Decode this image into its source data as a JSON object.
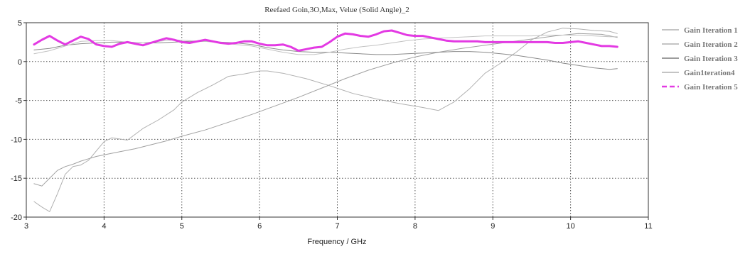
{
  "chart_data": {
    "type": "line",
    "title": "Reefaed Goin,3O,Max, Velue (Solid Angle)_2",
    "xlabel": "Frequency / GHz",
    "ylabel": "",
    "xlim": [
      3,
      11
    ],
    "ylim": [
      -20,
      5
    ],
    "xticks": [
      3,
      4,
      5,
      6,
      7,
      8,
      9,
      10,
      11
    ],
    "yticks": [
      5,
      0,
      -5,
      -10,
      -15,
      -20
    ],
    "grid": true,
    "legend_position": "right",
    "series": [
      {
        "name": "Gain Iteration 1",
        "color": "#a0a0a0",
        "width": 1,
        "dash": false,
        "x": [
          3.1,
          3.2,
          3.3,
          3.4,
          3.5,
          3.6,
          3.7,
          3.8,
          3.9,
          4.0,
          4.2,
          4.4,
          4.6,
          4.8,
          5.0,
          5.3,
          5.6,
          5.9,
          6.2,
          6.5,
          6.8,
          7.1,
          7.4,
          7.7,
          8.0,
          8.3,
          8.6,
          8.9,
          9.2,
          9.5,
          9.8,
          10.1,
          10.4,
          10.6
        ],
        "y": [
          -15.7,
          -16.0,
          -15.0,
          -14.0,
          -13.5,
          -13.2,
          -12.8,
          -12.5,
          -12.2,
          -12.0,
          -11.6,
          -11.2,
          -10.7,
          -10.2,
          -9.6,
          -8.8,
          -7.8,
          -6.8,
          -5.7,
          -4.6,
          -3.4,
          -2.2,
          -1.1,
          -0.2,
          0.6,
          1.2,
          1.7,
          2.1,
          2.5,
          2.9,
          3.3,
          3.6,
          3.5,
          3.1
        ]
      },
      {
        "name": "Gain Iteration 2",
        "color": "#b0b0b0",
        "width": 1,
        "dash": false,
        "x": [
          3.1,
          3.2,
          3.3,
          3.4,
          3.5,
          3.6,
          3.7,
          3.8,
          3.9,
          4.0,
          4.1,
          4.3,
          4.5,
          4.7,
          4.9,
          5.0,
          5.2,
          5.4,
          5.6,
          5.8,
          6.0,
          6.1,
          6.3,
          6.6,
          6.9,
          7.2,
          7.5,
          7.8,
          8.1,
          8.3,
          8.5,
          8.7,
          8.9,
          9.1,
          9.3,
          9.5,
          9.7,
          9.9,
          10.1,
          10.3,
          10.5,
          10.6
        ],
        "y": [
          -18.0,
          -18.7,
          -19.3,
          -17.0,
          -14.5,
          -13.5,
          -13.3,
          -12.7,
          -11.5,
          -10.3,
          -9.8,
          -10.1,
          -8.6,
          -7.5,
          -6.2,
          -5.2,
          -4.0,
          -3.0,
          -1.9,
          -1.6,
          -1.2,
          -1.2,
          -1.5,
          -2.2,
          -3.1,
          -4.1,
          -4.8,
          -5.4,
          -5.9,
          -6.3,
          -5.2,
          -3.5,
          -1.5,
          -0.2,
          1.2,
          2.8,
          3.8,
          4.3,
          4.2,
          4.0,
          3.9,
          3.6
        ]
      },
      {
        "name": "Gain Iteration 3",
        "color": "#8a8a8a",
        "width": 1,
        "dash": false,
        "x": [
          3.1,
          3.3,
          3.5,
          3.7,
          3.9,
          4.1,
          4.3,
          4.5,
          4.7,
          4.9,
          5.1,
          5.3,
          5.5,
          5.7,
          5.9,
          6.1,
          6.3,
          6.5,
          6.7,
          6.9,
          7.1,
          7.3,
          7.5,
          7.7,
          7.9,
          8.1,
          8.3,
          8.5,
          8.7,
          8.9,
          9.1,
          9.3,
          9.5,
          9.7,
          9.9,
          10.1,
          10.3,
          10.5,
          10.6
        ],
        "y": [
          1.5,
          1.7,
          2.1,
          2.3,
          2.4,
          2.5,
          2.5,
          2.4,
          2.4,
          2.5,
          2.6,
          2.6,
          2.5,
          2.4,
          2.2,
          1.8,
          1.5,
          1.3,
          1.2,
          1.2,
          1.1,
          1.0,
          0.9,
          0.9,
          1.0,
          1.1,
          1.2,
          1.3,
          1.3,
          1.2,
          1.0,
          0.8,
          0.5,
          0.2,
          -0.2,
          -0.5,
          -0.8,
          -1.0,
          -0.9
        ]
      },
      {
        "name": "Gain Iteration 4",
        "color": "#c2c2c2",
        "width": 1,
        "dash": false,
        "x": [
          3.1,
          3.3,
          3.5,
          3.7,
          3.9,
          4.1,
          4.3,
          4.5,
          4.7,
          4.9,
          5.1,
          5.3,
          5.5,
          5.7,
          5.9,
          6.1,
          6.3,
          6.5,
          6.7,
          6.9,
          7.1,
          7.3,
          7.5,
          7.7,
          7.9,
          8.1,
          8.3,
          8.5,
          8.7,
          8.9,
          9.1,
          9.3,
          9.5,
          9.7,
          9.9,
          10.1,
          10.3,
          10.5,
          10.6
        ],
        "y": [
          1.0,
          1.4,
          2.0,
          2.6,
          2.7,
          2.7,
          2.5,
          2.4,
          2.6,
          2.8,
          2.7,
          2.6,
          2.4,
          2.2,
          2.0,
          1.6,
          1.2,
          0.9,
          0.9,
          1.2,
          1.6,
          1.9,
          2.1,
          2.4,
          2.7,
          2.9,
          3.0,
          3.1,
          3.2,
          3.3,
          3.3,
          3.3,
          3.3,
          3.4,
          3.4,
          3.4,
          3.3,
          3.2,
          3.2
        ]
      },
      {
        "name": "Gain Iteration 5",
        "color": "#e33ae3",
        "width": 3,
        "dash": false,
        "x": [
          3.1,
          3.2,
          3.3,
          3.4,
          3.5,
          3.6,
          3.7,
          3.8,
          3.9,
          4.0,
          4.1,
          4.2,
          4.3,
          4.4,
          4.5,
          4.6,
          4.7,
          4.8,
          4.9,
          5.0,
          5.1,
          5.2,
          5.3,
          5.4,
          5.5,
          5.6,
          5.7,
          5.8,
          5.9,
          6.0,
          6.1,
          6.2,
          6.3,
          6.4,
          6.5,
          6.6,
          6.7,
          6.8,
          6.9,
          7.0,
          7.1,
          7.2,
          7.3,
          7.4,
          7.5,
          7.6,
          7.7,
          7.8,
          7.9,
          8.0,
          8.1,
          8.2,
          8.3,
          8.4,
          8.5,
          8.6,
          8.7,
          8.8,
          8.9,
          9.0,
          9.1,
          9.2,
          9.3,
          9.4,
          9.5,
          9.6,
          9.7,
          9.8,
          9.9,
          10.0,
          10.1,
          10.2,
          10.3,
          10.4,
          10.5,
          10.6
        ],
        "y": [
          2.2,
          2.8,
          3.3,
          2.7,
          2.2,
          2.7,
          3.2,
          2.9,
          2.2,
          2.0,
          1.9,
          2.3,
          2.5,
          2.3,
          2.1,
          2.4,
          2.7,
          3.0,
          2.8,
          2.5,
          2.4,
          2.6,
          2.8,
          2.6,
          2.4,
          2.3,
          2.4,
          2.6,
          2.6,
          2.3,
          2.1,
          2.1,
          2.2,
          1.9,
          1.4,
          1.6,
          1.8,
          1.9,
          2.5,
          3.2,
          3.6,
          3.5,
          3.3,
          3.2,
          3.5,
          3.9,
          4.0,
          3.7,
          3.4,
          3.3,
          3.3,
          3.1,
          2.9,
          2.7,
          2.6,
          2.6,
          2.6,
          2.6,
          2.5,
          2.5,
          2.5,
          2.5,
          2.5,
          2.5,
          2.5,
          2.5,
          2.5,
          2.4,
          2.4,
          2.5,
          2.6,
          2.4,
          2.2,
          2.0,
          2.0,
          1.9
        ]
      }
    ],
    "legend": [
      {
        "label": "Gain Iteration  1",
        "color": "#a0a0a0",
        "style": "solid"
      },
      {
        "label": "Gain Iteration  2",
        "color": "#a0a0a0",
        "style": "solid"
      },
      {
        "label": "Gain Iteration  3",
        "color": "#606060",
        "style": "solid"
      },
      {
        "label": "Gain1teration4",
        "color": "#a0a0a0",
        "style": "solid"
      },
      {
        "label": "Gain Iteration  5",
        "color": "#e33ae3",
        "style": "dashed"
      }
    ]
  }
}
